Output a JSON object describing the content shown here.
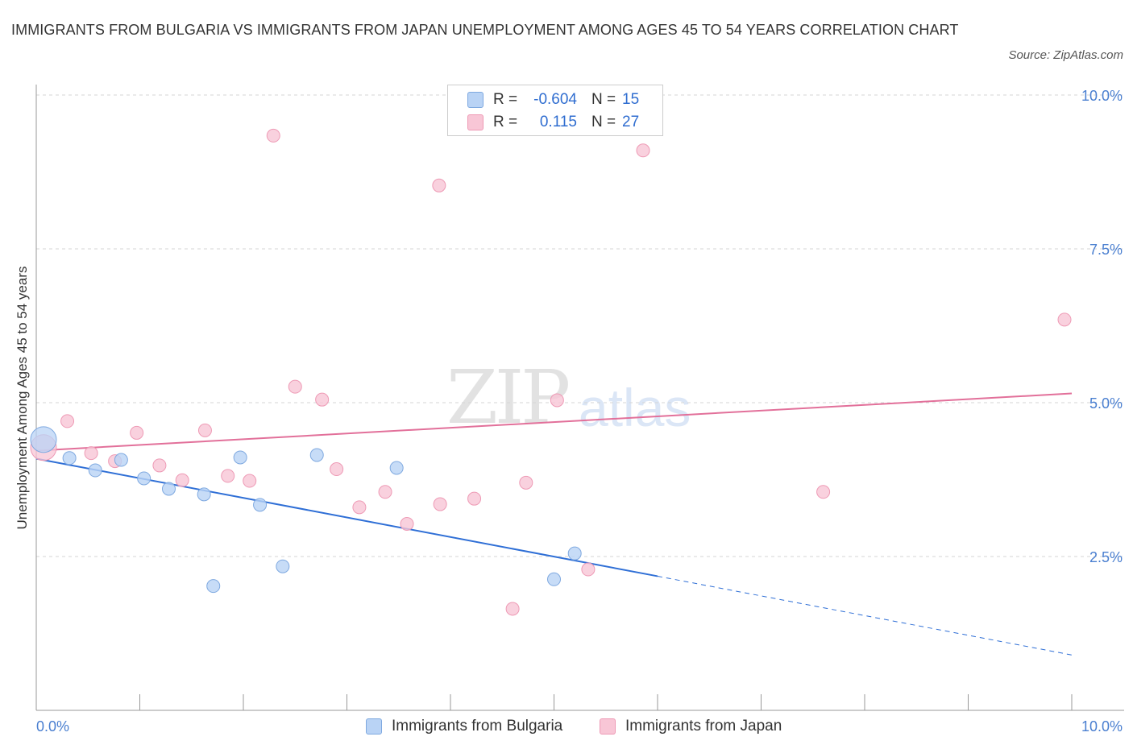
{
  "title": "IMMIGRANTS FROM BULGARIA VS IMMIGRANTS FROM JAPAN UNEMPLOYMENT AMONG AGES 45 TO 54 YEARS CORRELATION CHART",
  "source": "Source: ZipAtlas.com",
  "watermark": {
    "zip": "ZIP",
    "atlas": "atlas"
  },
  "colors": {
    "bulgaria_fill": "#b9d3f5",
    "bulgaria_stroke": "#7fa9e0",
    "bulgaria_line": "#2f6fd6",
    "japan_fill": "#f8c6d6",
    "japan_stroke": "#ee9ab5",
    "japan_line": "#e2709a",
    "tick_text": "#4a7fd0",
    "grid": "#d6d6d6"
  },
  "legend": {
    "rows": [
      {
        "r_label": "R =",
        "r_value": "-0.604",
        "n_label": "N =",
        "n_value": "15"
      },
      {
        "r_label": "R =",
        "r_value": "0.115",
        "n_label": "N =",
        "n_value": "27"
      }
    ]
  },
  "bottom_legend": {
    "bulgaria": "Immigrants from Bulgaria",
    "japan": "Immigrants from Japan"
  },
  "chart_data": {
    "type": "scatter",
    "title": "IMMIGRANTS FROM BULGARIA VS IMMIGRANTS FROM JAPAN UNEMPLOYMENT AMONG AGES 45 TO 54 YEARS CORRELATION CHART",
    "xlabel": "",
    "ylabel": "Unemployment Among Ages 45 to 54 years",
    "xlim": [
      0,
      10
    ],
    "ylim": [
      0,
      10
    ],
    "x_tick_labels": [
      "0.0%",
      "10.0%"
    ],
    "y_ticks": [
      2.5,
      5.0,
      7.5,
      10.0
    ],
    "y_tick_labels": [
      "2.5%",
      "5.0%",
      "7.5%",
      "10.0%"
    ],
    "grid": true,
    "series": [
      {
        "name": "Immigrants from Bulgaria",
        "points": [
          {
            "x": 0.07,
            "y": 4.4,
            "size": "large"
          },
          {
            "x": 0.32,
            "y": 4.1
          },
          {
            "x": 0.57,
            "y": 3.9
          },
          {
            "x": 0.82,
            "y": 4.07
          },
          {
            "x": 1.04,
            "y": 3.77
          },
          {
            "x": 1.28,
            "y": 3.6
          },
          {
            "x": 1.62,
            "y": 3.51
          },
          {
            "x": 1.71,
            "y": 2.02
          },
          {
            "x": 1.97,
            "y": 4.11
          },
          {
            "x": 2.16,
            "y": 3.34
          },
          {
            "x": 2.38,
            "y": 2.34
          },
          {
            "x": 2.71,
            "y": 4.15
          },
          {
            "x": 3.48,
            "y": 3.94
          },
          {
            "x": 5.0,
            "y": 2.13
          },
          {
            "x": 5.2,
            "y": 2.55
          }
        ],
        "trend": {
          "x0": 0,
          "y0": 4.09,
          "x1": 6.0,
          "y1": 2.18,
          "dashed_to_x": 10.0,
          "dashed_to_y": 0.9
        }
      },
      {
        "name": "Immigrants from Japan",
        "points": [
          {
            "x": 0.07,
            "y": 4.27,
            "size": "large"
          },
          {
            "x": 0.3,
            "y": 4.7
          },
          {
            "x": 0.53,
            "y": 4.18
          },
          {
            "x": 0.76,
            "y": 4.05
          },
          {
            "x": 0.97,
            "y": 4.51
          },
          {
            "x": 1.19,
            "y": 3.98
          },
          {
            "x": 1.41,
            "y": 3.74
          },
          {
            "x": 1.63,
            "y": 4.55
          },
          {
            "x": 1.85,
            "y": 3.81
          },
          {
            "x": 2.06,
            "y": 3.73
          },
          {
            "x": 2.29,
            "y": 9.34
          },
          {
            "x": 2.5,
            "y": 5.26
          },
          {
            "x": 2.76,
            "y": 5.05
          },
          {
            "x": 2.9,
            "y": 3.92
          },
          {
            "x": 3.12,
            "y": 3.3
          },
          {
            "x": 3.37,
            "y": 3.55
          },
          {
            "x": 3.58,
            "y": 3.03
          },
          {
            "x": 3.89,
            "y": 8.53
          },
          {
            "x": 3.9,
            "y": 3.35
          },
          {
            "x": 4.23,
            "y": 3.44
          },
          {
            "x": 4.6,
            "y": 1.65
          },
          {
            "x": 4.73,
            "y": 3.7
          },
          {
            "x": 5.03,
            "y": 5.04
          },
          {
            "x": 5.33,
            "y": 2.29
          },
          {
            "x": 5.86,
            "y": 9.1
          },
          {
            "x": 7.6,
            "y": 3.55
          },
          {
            "x": 9.93,
            "y": 6.35
          }
        ],
        "trend": {
          "x0": 0,
          "y0": 4.22,
          "x1": 10.0,
          "y1": 5.15
        }
      }
    ]
  }
}
